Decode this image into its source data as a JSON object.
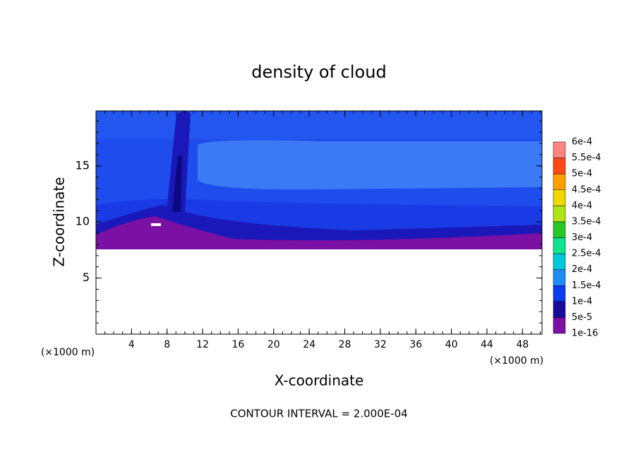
{
  "chart_data": {
    "type": "contour",
    "title": "density of cloud",
    "x_label": "X-coordinate",
    "y_label": "Z-coordinate",
    "x_unit_left": "(×1000 m)",
    "x_unit_right": "(×1000 m)",
    "footer": "CONTOUR INTERVAL = 2.000E-04",
    "xlim": [
      0,
      50.2
    ],
    "ylim": [
      0,
      19.9
    ],
    "xticks": [
      4,
      8,
      12,
      16,
      20,
      24,
      28,
      32,
      36,
      40,
      44,
      48
    ],
    "yticks": [
      5,
      10,
      15
    ],
    "colorbar": {
      "labels": [
        "1e-16",
        "5e-5",
        "1e-4",
        "1.5e-4",
        "2e-4",
        "2.5e-4",
        "3e-4",
        "3.5e-4",
        "4e-4",
        "4.5e-4",
        "5e-4",
        "5.5e-4",
        "6e-4"
      ],
      "colors": [
        "#7a10a4",
        "#180c9c",
        "#0a3cf0",
        "#1e8cf5",
        "#00c8dc",
        "#10e490",
        "#28c82a",
        "#b0e414",
        "#f0d800",
        "#ffa000",
        "#ff4a18",
        "#ff8484"
      ]
    }
  }
}
